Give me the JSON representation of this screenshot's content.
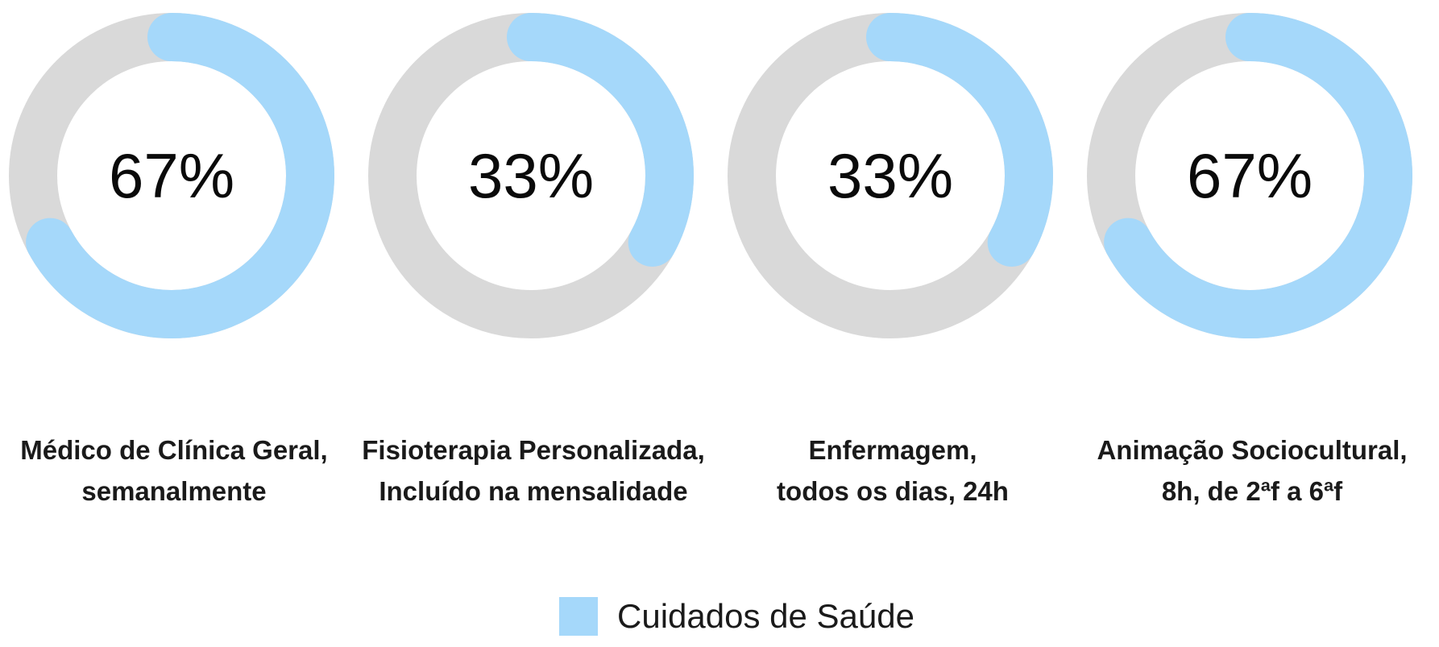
{
  "colors": {
    "track": "#d9d9d9",
    "value": "#a5d8fa",
    "text": "#1a1a1a"
  },
  "chart_data": {
    "type": "donut",
    "series_name": "Cuidados de Saúde",
    "max": 100,
    "items": [
      {
        "value": 67,
        "value_label": "67%",
        "label_lines": [
          "Médico de Clínica Geral,",
          "semanalmente"
        ]
      },
      {
        "value": 33,
        "value_label": "33%",
        "label_lines": [
          "Fisioterapia Personalizada,",
          "Incluído na mensalidade"
        ]
      },
      {
        "value": 33,
        "value_label": "33%",
        "label_lines": [
          "Enfermagem,",
          "todos os dias, 24h"
        ]
      },
      {
        "value": 67,
        "value_label": "67%",
        "label_lines": [
          "Animação Sociocultural,",
          "8h, de 2ªf a 6ªf"
        ]
      }
    ],
    "legend": {
      "label": "Cuidados de Saúde",
      "placement": "bottom-center"
    }
  }
}
